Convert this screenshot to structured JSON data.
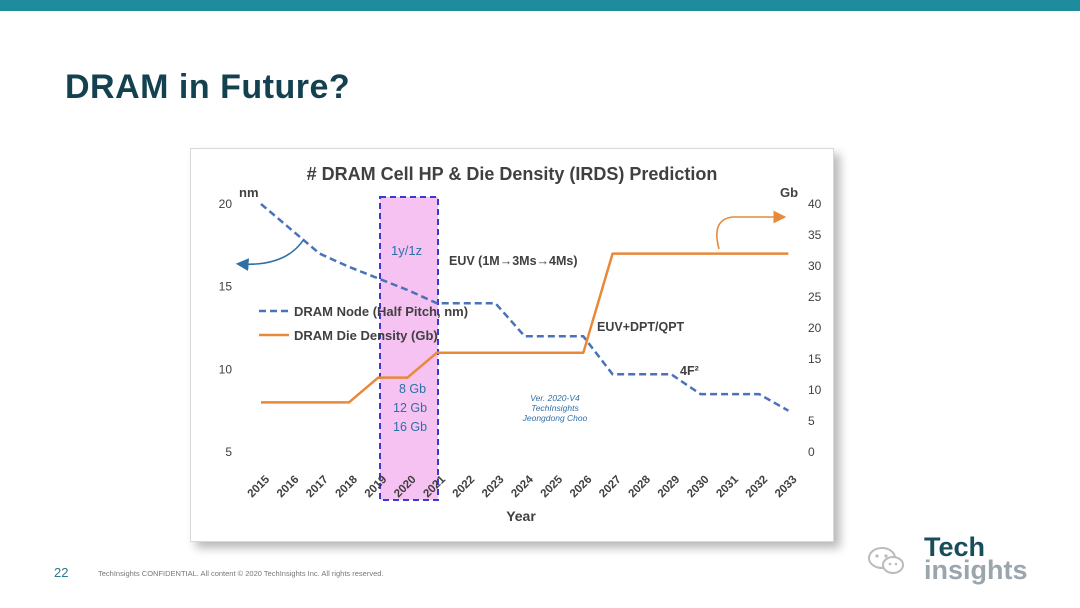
{
  "slide": {
    "title": "DRAM in Future?",
    "page_number": "22",
    "footer": "TechInsights CONFIDENTIAL. All content © 2020 TechInsights Inc. All rights reserved.",
    "logo": {
      "line1": "Tech",
      "line2": "insights"
    }
  },
  "chart_data": {
    "type": "line",
    "title": "# DRAM Cell HP & Die Density (IRDS) Prediction",
    "xlabel": "Year",
    "ylabel_left": "nm",
    "ylabel_right": "Gb",
    "categories": [
      "2015",
      "2016",
      "2017",
      "2018",
      "2019",
      "2020",
      "2021",
      "2022",
      "2023",
      "2024",
      "2025",
      "2026",
      "2027",
      "2028",
      "2029",
      "2030",
      "2031",
      "2032",
      "2033"
    ],
    "left_axis": {
      "ylim": [
        5,
        20
      ],
      "ticks": [
        5,
        10,
        15,
        20
      ]
    },
    "right_axis": {
      "ylim": [
        0,
        40
      ],
      "ticks": [
        0,
        5,
        10,
        15,
        20,
        25,
        30,
        35,
        40
      ]
    },
    "series": [
      {
        "name": "DRAM Node (Half Pitch, nm)",
        "axis": "left",
        "style": "dashed",
        "color": "#4a72b8",
        "values": [
          20,
          18.5,
          17,
          16.2,
          15.5,
          14.8,
          14,
          14,
          14,
          12,
          12,
          12,
          9.7,
          9.7,
          9.7,
          8.5,
          8.5,
          8.5,
          7.5
        ]
      },
      {
        "name": "DRAM Die Density (Gb)",
        "axis": "right",
        "style": "solid",
        "color": "#e8893a",
        "values": [
          8,
          8,
          8,
          8,
          12,
          12,
          16,
          16,
          16,
          16,
          16,
          16,
          32,
          32,
          32,
          32,
          32,
          32,
          32
        ]
      }
    ],
    "legend_position": "left-middle",
    "grid": false,
    "highlight": {
      "start": "2019",
      "end": "2021",
      "label": "1y/1z"
    },
    "annotations": {
      "euv": "EUV (1M→3Ms→4Ms)",
      "euv_dpt": "EUV+DPT/QPT",
      "f2": "4F²",
      "version": [
        "Ver. 2020-V4",
        "TechInsights",
        "Jeongdong Choo"
      ],
      "densities": [
        "8 Gb",
        "12 Gb",
        "16 Gb"
      ]
    }
  }
}
